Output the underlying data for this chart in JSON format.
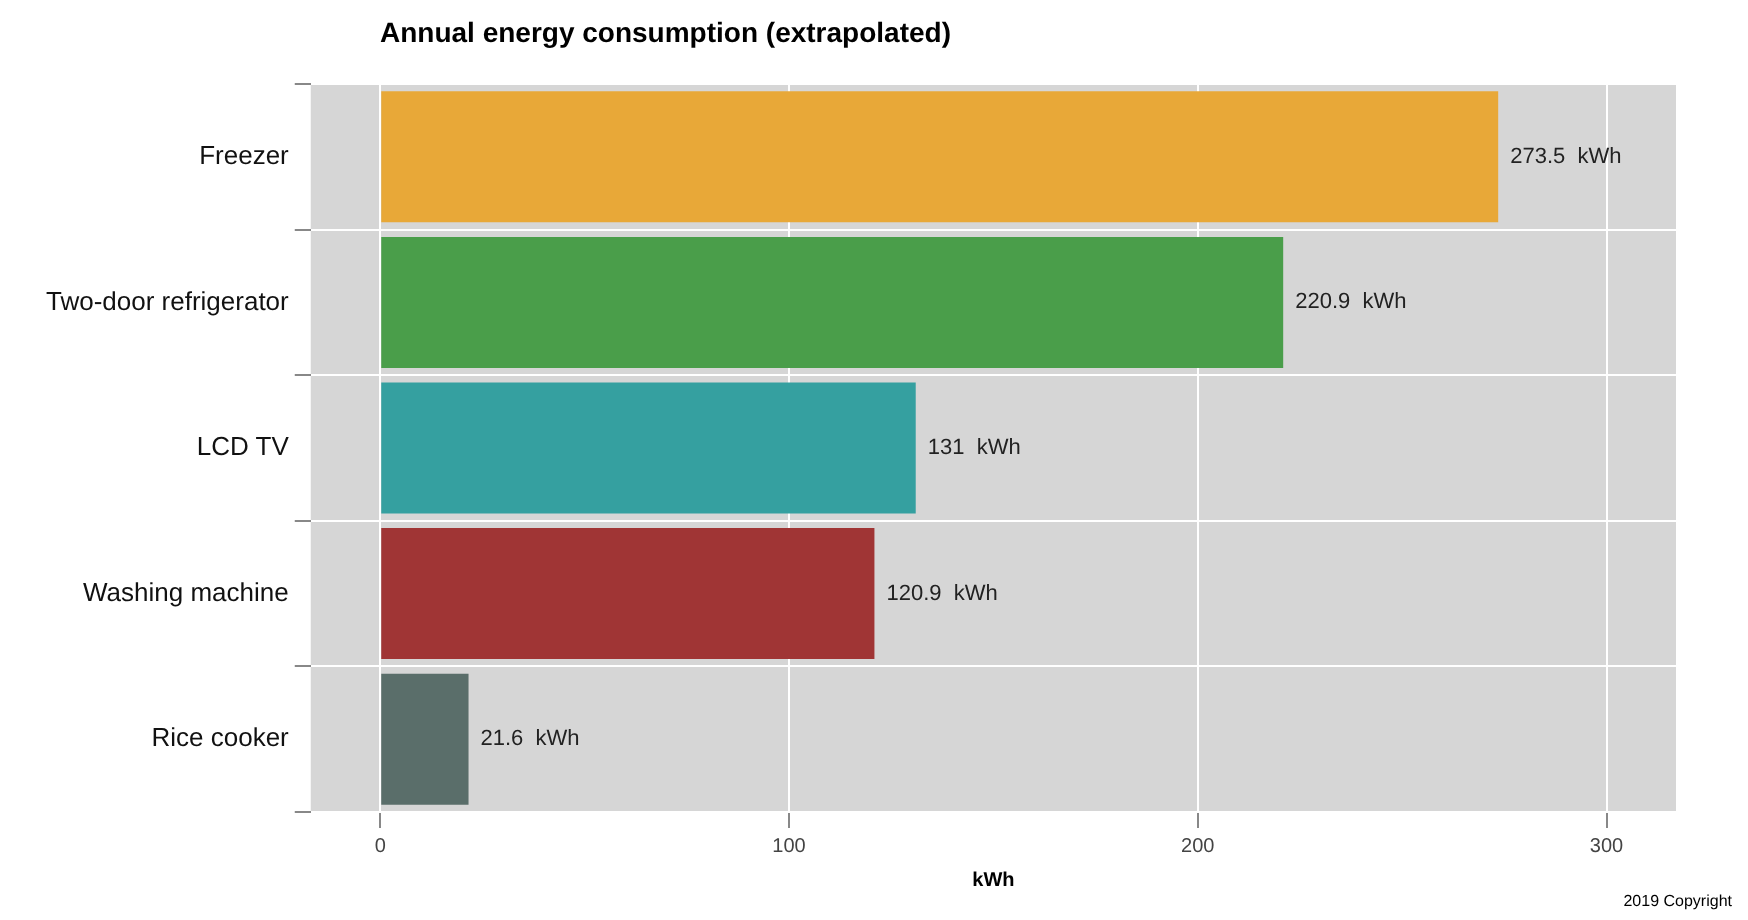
{
  "chart_data": {
    "type": "bar",
    "orientation": "horizontal",
    "title": "Annual energy consumption (extrapolated)",
    "xlabel": "kWh",
    "categories": [
      "Freezer",
      "Two-door refrigerator",
      "LCD TV",
      "Washing machine",
      "Rice cooker"
    ],
    "values": [
      273.5,
      220.9,
      131,
      120.9,
      21.6
    ],
    "colors": [
      "#e8a838",
      "#4a9e4a",
      "#35a0a0",
      "#a03535",
      "#5a6e6a"
    ],
    "value_labels": [
      "273.5  kWh",
      "220.9  kWh",
      "131  kWh",
      "120.9  kWh",
      "21.6  kWh"
    ],
    "xlim": [
      -17,
      317
    ],
    "xticks": [
      0,
      100,
      200,
      300
    ],
    "grid": true,
    "legend": false,
    "annotations": [
      "2019 Copyright"
    ]
  }
}
